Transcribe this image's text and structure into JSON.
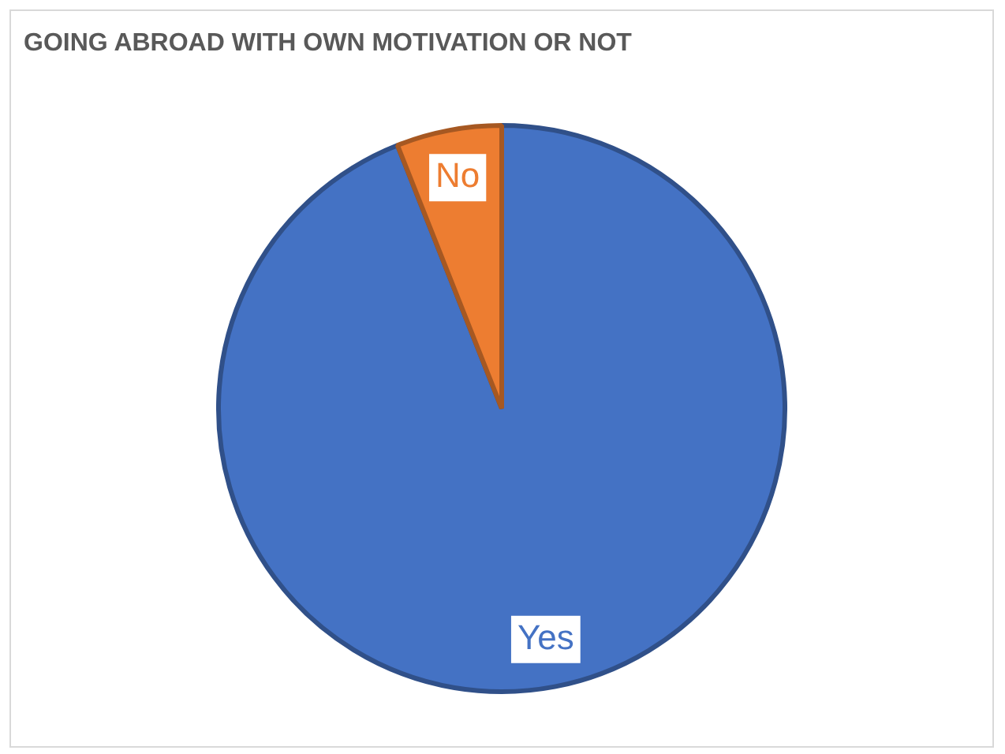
{
  "chart_data": {
    "type": "pie",
    "title": "GOING ABROAD WITH OWN MOTIVATION OR NOT",
    "categories": [
      "Yes",
      "No"
    ],
    "values": [
      94,
      6
    ],
    "colors": [
      "#4472c4",
      "#ed7d31"
    ],
    "legend": false
  }
}
